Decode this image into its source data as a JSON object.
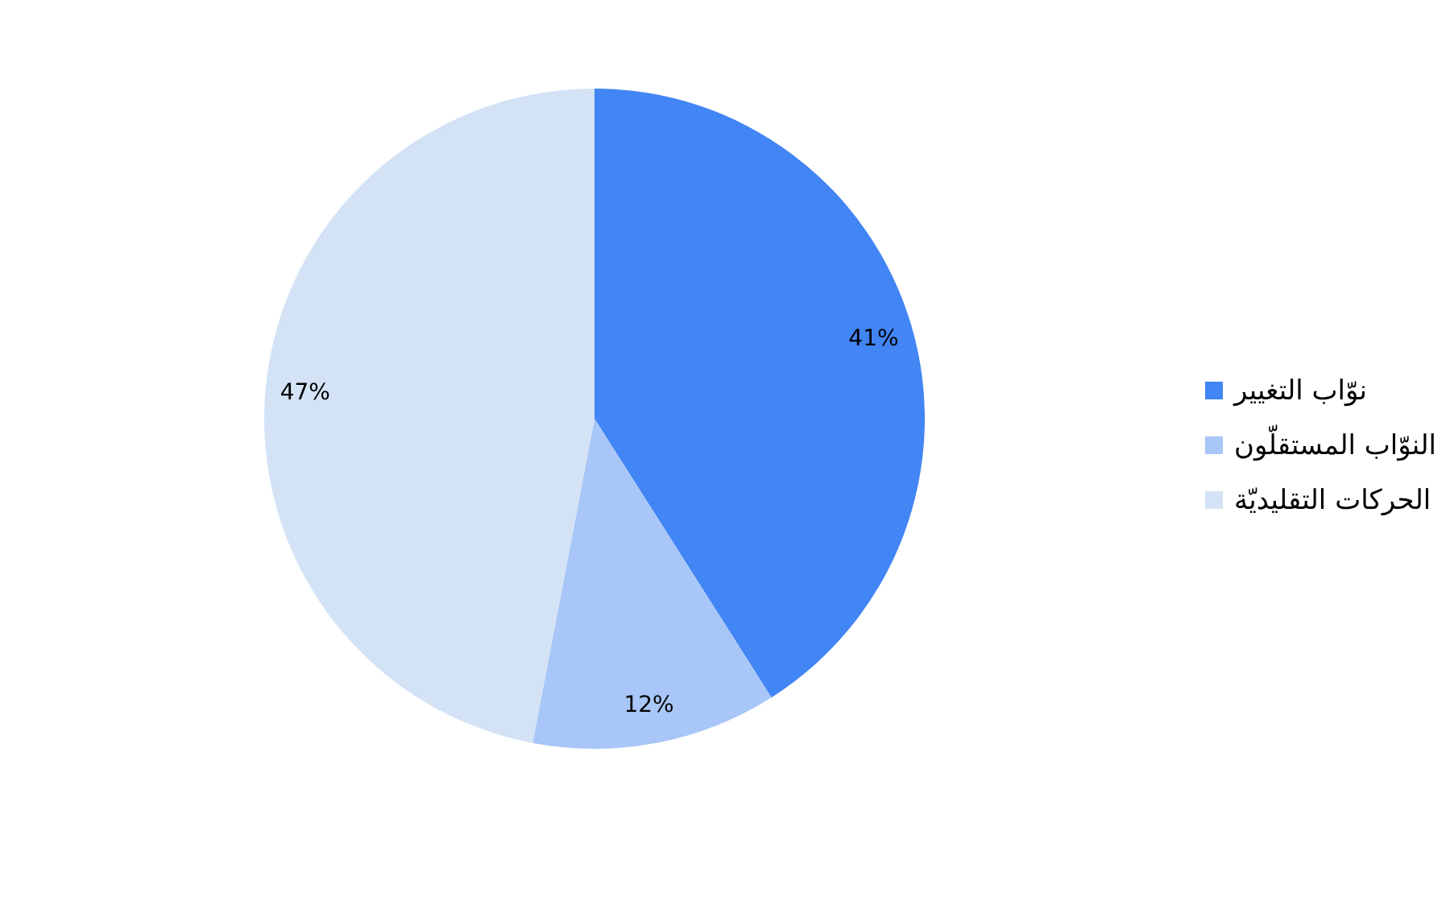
{
  "chart_data": {
    "type": "pie",
    "categories": [
      "نوّاب التغيير",
      "النوّاب المستقلّون",
      "الحركات التقليديّة"
    ],
    "values": [
      41,
      12,
      47
    ],
    "colors": [
      "#4285f4",
      "#a8c6f7",
      "#d3e3f5"
    ],
    "value_labels": [
      "41%",
      "12%",
      "47%"
    ],
    "legend": "right"
  }
}
